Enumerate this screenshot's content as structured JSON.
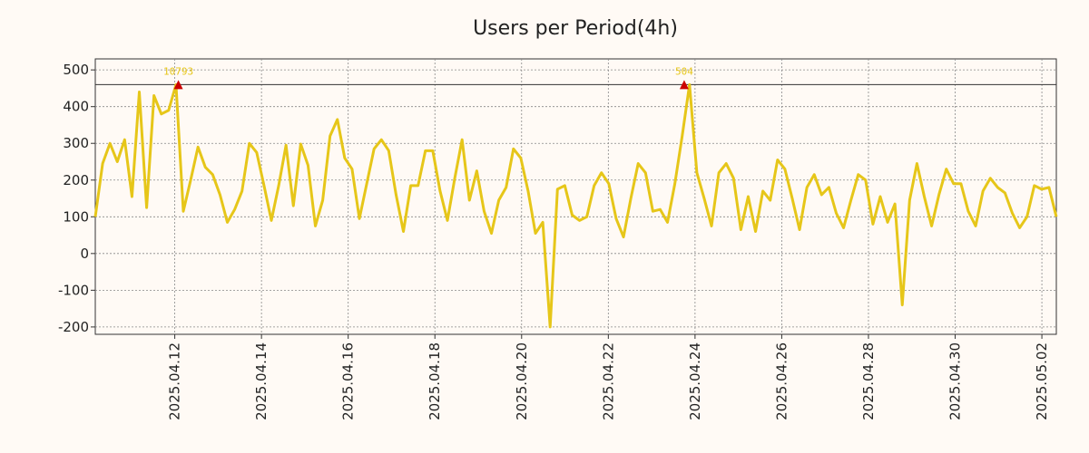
{
  "chart_data": {
    "type": "line",
    "title": "Users per Period(4h)",
    "xlabel": "",
    "ylabel": "",
    "grid": true,
    "legend": "none",
    "line_color": "#e6c619",
    "marker_color": "#cc0000",
    "ref_line_color": "#333333",
    "x_start": "2025-04-10T04:00",
    "x_end": "2025-05-02T08:00",
    "xlim": [
      "2025-04-10T04:00",
      "2025-05-02T08:00"
    ],
    "ylim": [
      -220,
      530
    ],
    "y_ticks": [
      500,
      400,
      300,
      200,
      100,
      0,
      -100,
      -200
    ],
    "x_ticks": [
      "2025.04.12",
      "2025.04.14",
      "2025.04.16",
      "2025.04.18",
      "2025.04.20",
      "2025.04.22",
      "2025.04.24",
      "2025.04.26",
      "2025.04.28",
      "2025.04.30",
      "2025.05.02"
    ],
    "reference_line": 460,
    "peaks": [
      {
        "x": "2025-04-12T02:00",
        "y": 460,
        "label": "10793"
      },
      {
        "x": "2025-04-23T18:00",
        "y": 460,
        "label": "504"
      }
    ],
    "series": [
      {
        "values": [
          100,
          245,
          300,
          250,
          310,
          155,
          440,
          125,
          430,
          380,
          390,
          460,
          115,
          200,
          290,
          235,
          215,
          160,
          85,
          120,
          170,
          300,
          275,
          185,
          90,
          185,
          295,
          130,
          298,
          240,
          75,
          145,
          320,
          365,
          260,
          230,
          95,
          190,
          285,
          310,
          280,
          160,
          60,
          185,
          185,
          280,
          280,
          170,
          90,
          205,
          310,
          145,
          225,
          115,
          55,
          145,
          180,
          285,
          260,
          170,
          55,
          85,
          -200,
          175,
          185,
          105,
          90,
          100,
          185,
          220,
          190,
          95,
          45,
          150,
          245,
          220,
          115,
          120,
          85,
          190,
          320,
          460,
          220,
          150,
          75,
          220,
          245,
          205,
          65,
          155,
          60,
          170,
          145,
          255,
          230,
          150,
          65,
          180,
          215,
          160,
          180,
          110,
          70,
          145,
          215,
          200,
          80,
          155,
          85,
          135,
          -140,
          145,
          245,
          155,
          75,
          160,
          230,
          190,
          190,
          115,
          75,
          170,
          205,
          180,
          165,
          110,
          70,
          100,
          185,
          175,
          180,
          100
        ]
      }
    ]
  }
}
